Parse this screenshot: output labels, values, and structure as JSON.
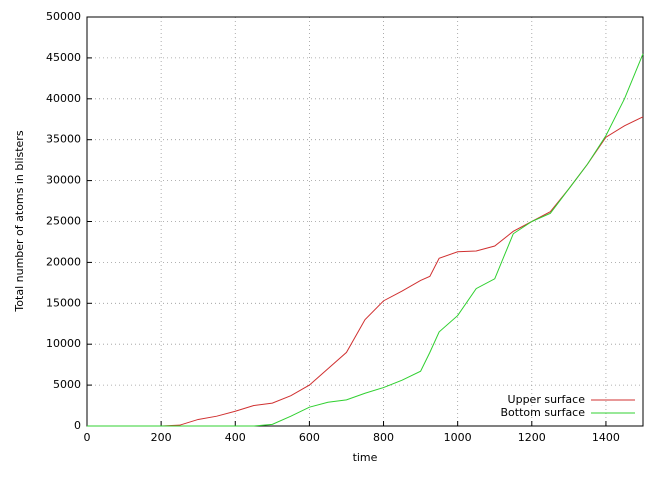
{
  "chart_data": {
    "type": "line",
    "x_label": "time",
    "y_label": "Total number of atoms in blisters",
    "x": [
      0,
      200,
      250,
      300,
      350,
      400,
      450,
      500,
      550,
      600,
      650,
      700,
      750,
      800,
      850,
      900,
      925,
      950,
      1000,
      1050,
      1100,
      1150,
      1200,
      1250,
      1300,
      1350,
      1400,
      1450,
      1500
    ],
    "series": [
      {
        "name": "Upper surface",
        "color": "#d03030",
        "values": [
          0,
          0,
          100,
          800,
          1200,
          1800,
          2500,
          2800,
          3700,
          5000,
          7000,
          9000,
          13000,
          15300,
          16500,
          17800,
          18300,
          20500,
          21300,
          21400,
          22000,
          23800,
          25000,
          26200,
          29000,
          32000,
          35300,
          36700,
          37800
        ]
      },
      {
        "name": "Bottom surface",
        "color": "#30d030",
        "values": [
          0,
          0,
          0,
          0,
          0,
          0,
          0,
          200,
          1200,
          2300,
          2900,
          3200,
          4000,
          4700,
          5600,
          6700,
          9000,
          11500,
          13500,
          16800,
          18000,
          23500,
          25000,
          26000,
          29000,
          32000,
          35500,
          40000,
          45500
        ]
      }
    ],
    "xlim": [
      0,
      1500
    ],
    "xticks": [
      0,
      200,
      400,
      600,
      800,
      1000,
      1200,
      1400
    ],
    "ylim": [
      0,
      50000
    ],
    "yticks": [
      0,
      5000,
      10000,
      15000,
      20000,
      25000,
      30000,
      35000,
      40000,
      45000,
      50000
    ],
    "grid": true,
    "legend": "lower-right"
  }
}
